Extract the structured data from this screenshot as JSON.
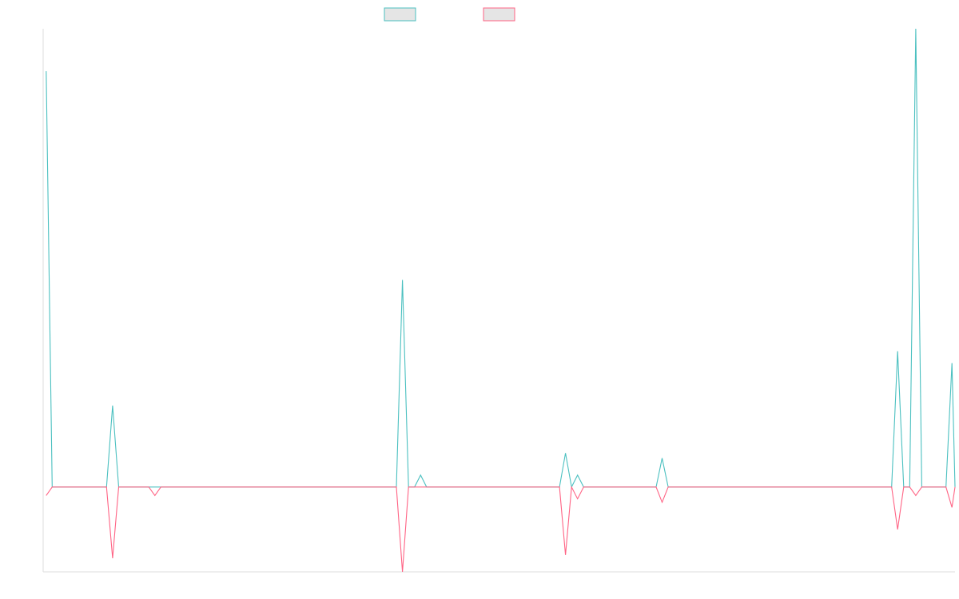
{
  "chart_data": {
    "type": "line",
    "title": "",
    "xlabel": "",
    "ylabel": "",
    "grid": false,
    "legend_position": "top-center",
    "n_points": 150,
    "ylim": [
      -5.0,
      27.0
    ],
    "series": [
      {
        "color": "#4bc0c0",
        "legend_fill": "#e5e5e5",
        "points": [
          [
            0,
            24.5
          ],
          [
            1,
            0
          ],
          [
            10,
            0
          ],
          [
            11,
            4.8
          ],
          [
            12,
            0
          ],
          [
            58,
            0
          ],
          [
            59,
            12.2
          ],
          [
            60,
            0
          ],
          [
            61,
            0
          ],
          [
            62,
            0.7
          ],
          [
            63,
            0
          ],
          [
            85,
            0
          ],
          [
            86,
            2.0
          ],
          [
            87,
            0
          ],
          [
            88,
            0.7
          ],
          [
            89,
            0
          ],
          [
            101,
            0
          ],
          [
            102,
            1.7
          ],
          [
            103,
            0
          ],
          [
            140,
            0
          ],
          [
            141,
            8.0
          ],
          [
            142,
            0
          ],
          [
            143,
            0
          ],
          [
            144,
            27.0
          ],
          [
            145,
            0
          ],
          [
            149,
            0
          ],
          [
            150,
            7.3
          ],
          [
            151,
            0
          ]
        ]
      },
      {
        "color": "#ff6384",
        "legend_fill": "#e5e5e5",
        "points": [
          [
            0,
            -0.5
          ],
          [
            1,
            0
          ],
          [
            10,
            0
          ],
          [
            11,
            -4.2
          ],
          [
            12,
            0
          ],
          [
            17,
            0
          ],
          [
            18,
            -0.5
          ],
          [
            19,
            0
          ],
          [
            58,
            0
          ],
          [
            59,
            -5.0
          ],
          [
            60,
            0
          ],
          [
            85,
            0
          ],
          [
            86,
            -4.0
          ],
          [
            87,
            0
          ],
          [
            88,
            -0.7
          ],
          [
            89,
            0
          ],
          [
            101,
            0
          ],
          [
            102,
            -0.9
          ],
          [
            103,
            0
          ],
          [
            140,
            0
          ],
          [
            141,
            -2.5
          ],
          [
            142,
            0
          ],
          [
            143,
            0
          ],
          [
            144,
            -0.5
          ],
          [
            145,
            0
          ],
          [
            149,
            0
          ],
          [
            150,
            -1.2
          ],
          [
            151,
            0
          ]
        ]
      }
    ]
  }
}
